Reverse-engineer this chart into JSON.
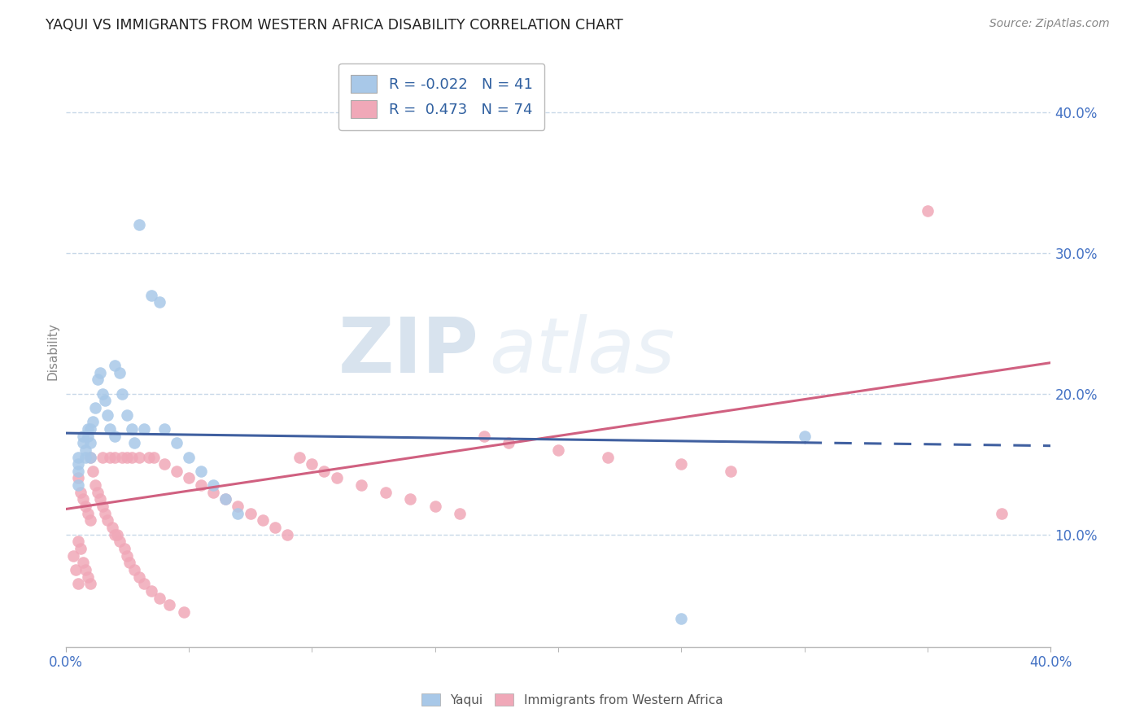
{
  "title": "YAQUI VS IMMIGRANTS FROM WESTERN AFRICA DISABILITY CORRELATION CHART",
  "source": "Source: ZipAtlas.com",
  "ylabel": "Disability",
  "ylabel_right_ticks": [
    "10.0%",
    "20.0%",
    "30.0%",
    "40.0%"
  ],
  "ylabel_right_vals": [
    0.1,
    0.2,
    0.3,
    0.4
  ],
  "xmin": 0.0,
  "xmax": 0.4,
  "ymin": 0.02,
  "ymax": 0.44,
  "watermark_zip": "ZIP",
  "watermark_atlas": "atlas",
  "legend_blue_r": "-0.022",
  "legend_blue_n": "41",
  "legend_pink_r": "0.473",
  "legend_pink_n": "74",
  "blue_color": "#a8c8e8",
  "pink_color": "#f0a8b8",
  "blue_line_color": "#4060a0",
  "pink_line_color": "#d06080",
  "background_color": "#ffffff",
  "grid_color": "#c8d8e8",
  "blue_line_y0": 0.172,
  "blue_line_y1": 0.163,
  "blue_line_x_solid_end": 0.3,
  "pink_line_y0": 0.118,
  "pink_line_y1": 0.222,
  "yaqui_x": [
    0.005,
    0.005,
    0.005,
    0.005,
    0.007,
    0.007,
    0.008,
    0.008,
    0.009,
    0.009,
    0.01,
    0.01,
    0.01,
    0.011,
    0.012,
    0.013,
    0.014,
    0.015,
    0.016,
    0.017,
    0.018,
    0.02,
    0.02,
    0.022,
    0.023,
    0.025,
    0.027,
    0.028,
    0.03,
    0.032,
    0.035,
    0.038,
    0.04,
    0.045,
    0.05,
    0.055,
    0.06,
    0.065,
    0.07,
    0.25,
    0.3
  ],
  "yaqui_y": [
    0.155,
    0.15,
    0.145,
    0.135,
    0.165,
    0.17,
    0.16,
    0.155,
    0.175,
    0.17,
    0.175,
    0.165,
    0.155,
    0.18,
    0.19,
    0.21,
    0.215,
    0.2,
    0.195,
    0.185,
    0.175,
    0.22,
    0.17,
    0.215,
    0.2,
    0.185,
    0.175,
    0.165,
    0.32,
    0.175,
    0.27,
    0.265,
    0.175,
    0.165,
    0.155,
    0.145,
    0.135,
    0.125,
    0.115,
    0.04,
    0.17
  ],
  "immigrants_x": [
    0.003,
    0.004,
    0.005,
    0.005,
    0.005,
    0.006,
    0.006,
    0.007,
    0.007,
    0.008,
    0.008,
    0.009,
    0.009,
    0.01,
    0.01,
    0.01,
    0.011,
    0.012,
    0.013,
    0.014,
    0.015,
    0.015,
    0.016,
    0.017,
    0.018,
    0.019,
    0.02,
    0.02,
    0.021,
    0.022,
    0.023,
    0.024,
    0.025,
    0.025,
    0.026,
    0.027,
    0.028,
    0.03,
    0.03,
    0.032,
    0.034,
    0.035,
    0.036,
    0.038,
    0.04,
    0.042,
    0.045,
    0.048,
    0.05,
    0.055,
    0.06,
    0.065,
    0.07,
    0.075,
    0.08,
    0.085,
    0.09,
    0.095,
    0.1,
    0.105,
    0.11,
    0.12,
    0.13,
    0.14,
    0.15,
    0.16,
    0.17,
    0.18,
    0.2,
    0.22,
    0.25,
    0.27,
    0.35,
    0.38
  ],
  "immigrants_y": [
    0.085,
    0.075,
    0.065,
    0.095,
    0.14,
    0.09,
    0.13,
    0.08,
    0.125,
    0.075,
    0.12,
    0.07,
    0.115,
    0.065,
    0.11,
    0.155,
    0.145,
    0.135,
    0.13,
    0.125,
    0.12,
    0.155,
    0.115,
    0.11,
    0.155,
    0.105,
    0.1,
    0.155,
    0.1,
    0.095,
    0.155,
    0.09,
    0.085,
    0.155,
    0.08,
    0.155,
    0.075,
    0.07,
    0.155,
    0.065,
    0.155,
    0.06,
    0.155,
    0.055,
    0.15,
    0.05,
    0.145,
    0.045,
    0.14,
    0.135,
    0.13,
    0.125,
    0.12,
    0.115,
    0.11,
    0.105,
    0.1,
    0.155,
    0.15,
    0.145,
    0.14,
    0.135,
    0.13,
    0.125,
    0.12,
    0.115,
    0.17,
    0.165,
    0.16,
    0.155,
    0.15,
    0.145,
    0.33,
    0.115
  ]
}
